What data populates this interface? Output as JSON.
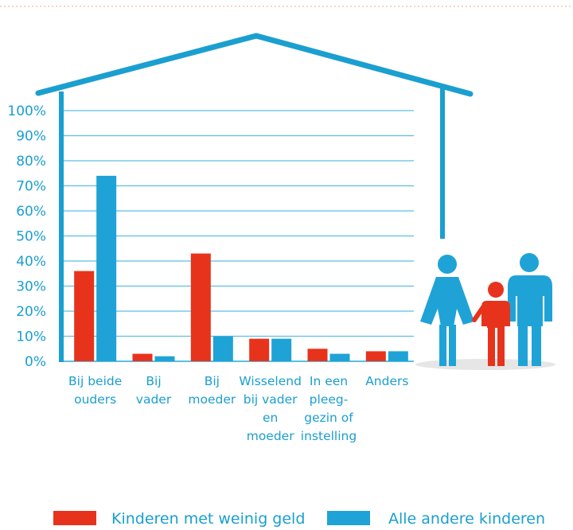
{
  "colors": {
    "red": "#e8331c",
    "blue": "#1fa3d6",
    "grid": "#5bbfe3",
    "house": "#1a9fd0"
  },
  "chart_data": {
    "type": "bar",
    "categories": [
      [
        "Bij beide",
        "ouders"
      ],
      [
        "Bij",
        "vader"
      ],
      [
        "Bij",
        "moeder"
      ],
      [
        "Wisselend",
        "bij vader",
        "en",
        "moeder"
      ],
      [
        "In een",
        "pleeg-",
        "gezin of",
        "instelling"
      ],
      [
        "Anders"
      ]
    ],
    "series": [
      {
        "name": "Kinderen met weinig geld",
        "color": "#e8331c",
        "values": [
          36,
          3,
          43,
          9,
          5,
          4
        ]
      },
      {
        "name": "Alle andere kinderen",
        "color": "#1fa3d6",
        "values": [
          74,
          2,
          10,
          9,
          3,
          4
        ]
      }
    ],
    "ylim": [
      0,
      100
    ],
    "yticks": [
      "0%",
      "10%",
      "20%",
      "30%",
      "40%",
      "50%",
      "60%",
      "70%",
      "80%",
      "90%",
      "100%"
    ],
    "grid": true,
    "legend_position": "bottom"
  },
  "illustration": {
    "icon": "family-icon"
  }
}
